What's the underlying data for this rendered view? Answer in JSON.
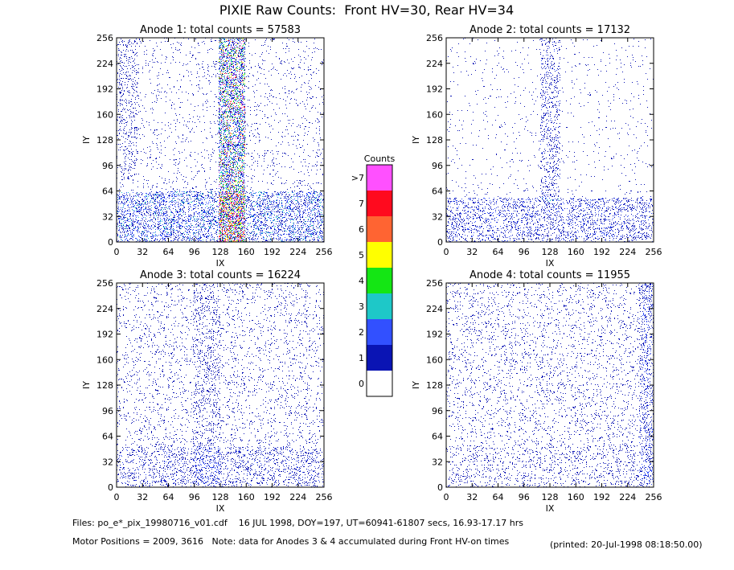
{
  "title": "PIXIE Raw Counts:  Front HV=30, Rear HV=34",
  "chart_data": [
    {
      "type": "heatmap",
      "title": "Anode 1: total counts = 57583",
      "xlabel": "IX",
      "ylabel": "IY",
      "xlim": [
        0,
        256
      ],
      "ylim": [
        0,
        256
      ],
      "xticks": [
        0,
        32,
        64,
        96,
        128,
        160,
        192,
        224,
        256
      ],
      "yticks": [
        0,
        32,
        64,
        96,
        128,
        160,
        192,
        224,
        256
      ]
    },
    {
      "type": "heatmap",
      "title": "Anode 2: total counts = 17132",
      "xlabel": "IX",
      "ylabel": "IY",
      "xlim": [
        0,
        256
      ],
      "ylim": [
        0,
        256
      ],
      "xticks": [
        0,
        32,
        64,
        96,
        128,
        160,
        192,
        224,
        256
      ],
      "yticks": [
        0,
        32,
        64,
        96,
        128,
        160,
        192,
        224,
        256
      ]
    },
    {
      "type": "heatmap",
      "title": "Anode 3: total counts = 16224",
      "xlabel": "IX",
      "ylabel": "IY",
      "xlim": [
        0,
        256
      ],
      "ylim": [
        0,
        256
      ],
      "xticks": [
        0,
        32,
        64,
        96,
        128,
        160,
        192,
        224,
        256
      ],
      "yticks": [
        0,
        32,
        64,
        96,
        128,
        160,
        192,
        224,
        256
      ]
    },
    {
      "type": "heatmap",
      "title": "Anode 4: total counts = 11955",
      "xlabel": "IX",
      "ylabel": "IY",
      "xlim": [
        0,
        256
      ],
      "ylim": [
        0,
        256
      ],
      "xticks": [
        0,
        32,
        64,
        96,
        128,
        160,
        192,
        224,
        256
      ],
      "yticks": [
        0,
        32,
        64,
        96,
        128,
        160,
        192,
        224,
        256
      ]
    }
  ],
  "colorbar": {
    "title": "Counts",
    "labels": [
      "0",
      "1",
      "2",
      "3",
      "4",
      "5",
      "6",
      "7",
      ">7"
    ],
    "colors": [
      "#ffffff",
      "#0a14b4",
      "#3250ff",
      "#1ec8c8",
      "#14e614",
      "#ffff00",
      "#ff6432",
      "#ff0a1e",
      "#ff50ff"
    ]
  },
  "footer": {
    "files": "Files: po_e*_pix_19980716_v01.cdf    16 JUL 1998, DOY=197, UT=60941-61807 secs, 16.93-17.17 hrs",
    "motor": "Motor Positions = 2009, 3616   Note: data for Anodes 3 & 4 accumulated during Front HV-on times",
    "printed": "(printed: 20-Jul-1998 08:18:50.00)"
  }
}
